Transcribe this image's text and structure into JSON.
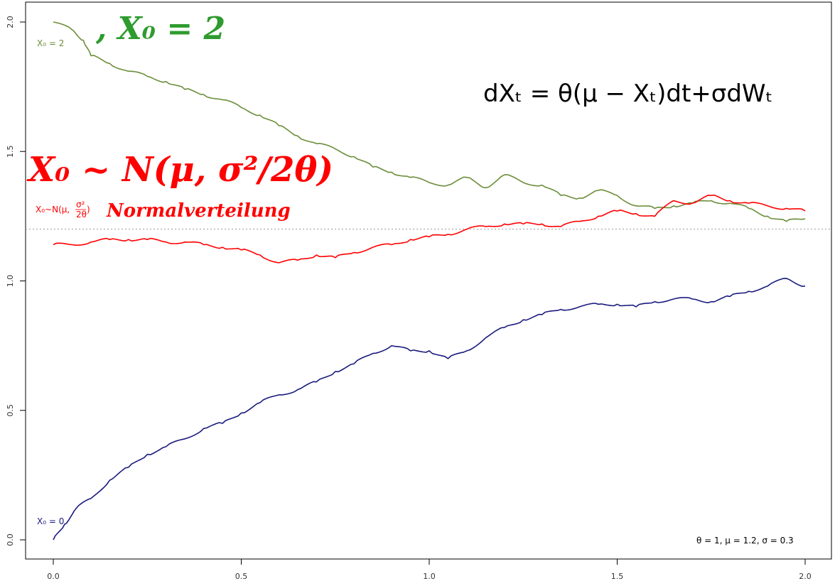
{
  "chart_data": {
    "type": "line",
    "title": "",
    "xlabel": "",
    "ylabel": "",
    "xlim": [
      0,
      2
    ],
    "ylim": [
      0,
      2
    ],
    "x_ticks": [
      0.0,
      0.5,
      1.0,
      1.5,
      2.0
    ],
    "x_tick_labels": [
      "0.0",
      "0.5",
      "1.0",
      "1.5",
      "2.0"
    ],
    "y_ticks": [
      0.0,
      0.5,
      1.0,
      1.5,
      2.0
    ],
    "y_tick_labels": [
      "0.0",
      "0.5",
      "1.0",
      "1.5",
      "2.0"
    ],
    "grid": false,
    "reference_line": {
      "y": 1.2,
      "style": "dotted",
      "color": "#999999"
    },
    "series": [
      {
        "name": "X₀ = 2",
        "color": "#6b8e3a",
        "x": [
          0,
          0.05,
          0.08,
          0.1,
          0.15,
          0.2,
          0.25,
          0.3,
          0.35,
          0.4,
          0.45,
          0.5,
          0.55,
          0.6,
          0.65,
          0.7,
          0.75,
          0.8,
          0.85,
          0.9,
          0.95,
          1.0,
          1.05,
          1.1,
          1.15,
          1.2,
          1.25,
          1.3,
          1.35,
          1.4,
          1.45,
          1.5,
          1.55,
          1.6,
          1.65,
          1.7,
          1.75,
          1.8,
          1.85,
          1.9,
          1.95,
          2.0
        ],
        "values": [
          2.0,
          1.97,
          1.93,
          1.87,
          1.84,
          1.81,
          1.79,
          1.77,
          1.74,
          1.72,
          1.7,
          1.67,
          1.64,
          1.6,
          1.56,
          1.53,
          1.51,
          1.48,
          1.44,
          1.42,
          1.4,
          1.38,
          1.37,
          1.4,
          1.36,
          1.41,
          1.38,
          1.37,
          1.33,
          1.32,
          1.35,
          1.33,
          1.29,
          1.28,
          1.29,
          1.3,
          1.31,
          1.3,
          1.28,
          1.25,
          1.23,
          1.24
        ]
      },
      {
        "name": "X₀~N(μ,σ²/2θ)",
        "color": "#ff0000",
        "x": [
          0,
          0.05,
          0.1,
          0.15,
          0.2,
          0.25,
          0.3,
          0.35,
          0.4,
          0.45,
          0.5,
          0.55,
          0.6,
          0.65,
          0.7,
          0.75,
          0.8,
          0.85,
          0.9,
          0.95,
          1.0,
          1.05,
          1.1,
          1.15,
          1.2,
          1.25,
          1.3,
          1.35,
          1.4,
          1.45,
          1.5,
          1.55,
          1.6,
          1.65,
          1.7,
          1.75,
          1.8,
          1.85,
          1.9,
          1.95,
          2.0
        ],
        "values": [
          1.14,
          1.14,
          1.15,
          1.16,
          1.16,
          1.16,
          1.15,
          1.15,
          1.14,
          1.13,
          1.12,
          1.1,
          1.07,
          1.08,
          1.1,
          1.09,
          1.11,
          1.13,
          1.14,
          1.16,
          1.17,
          1.18,
          1.2,
          1.21,
          1.22,
          1.22,
          1.22,
          1.21,
          1.23,
          1.25,
          1.27,
          1.26,
          1.25,
          1.31,
          1.3,
          1.33,
          1.31,
          1.3,
          1.29,
          1.28,
          1.27
        ]
      },
      {
        "name": "X₀ = 0",
        "color": "#1a1a7e",
        "x": [
          0,
          0.03,
          0.06,
          0.1,
          0.15,
          0.2,
          0.25,
          0.3,
          0.35,
          0.4,
          0.45,
          0.5,
          0.55,
          0.6,
          0.65,
          0.7,
          0.75,
          0.8,
          0.85,
          0.9,
          0.95,
          1.0,
          1.05,
          1.1,
          1.15,
          1.2,
          1.25,
          1.3,
          1.35,
          1.4,
          1.45,
          1.5,
          1.55,
          1.6,
          1.65,
          1.7,
          1.75,
          1.8,
          1.85,
          1.9,
          1.95,
          2.0
        ],
        "values": [
          0.0,
          0.06,
          0.12,
          0.16,
          0.23,
          0.28,
          0.33,
          0.36,
          0.39,
          0.43,
          0.45,
          0.49,
          0.53,
          0.56,
          0.58,
          0.61,
          0.65,
          0.68,
          0.72,
          0.75,
          0.73,
          0.73,
          0.7,
          0.73,
          0.78,
          0.82,
          0.85,
          0.87,
          0.89,
          0.9,
          0.91,
          0.91,
          0.9,
          0.92,
          0.93,
          0.93,
          0.92,
          0.94,
          0.96,
          0.98,
          1.01,
          0.98
        ]
      }
    ]
  },
  "labels": {
    "x0_2": "X₀ = 2",
    "x0_normal_prefix": "X₀~N(μ,",
    "x0_normal_num": "σ²",
    "x0_normal_den": "2θ",
    "x0_normal_suffix": ")",
    "x0_0": "X₀ = 0"
  },
  "formula": "dXₜ = θ(μ − Xₜ)dt+σdWₜ",
  "params": "θ = 1, μ = 1.2, σ = 0.3",
  "annotations": {
    "green": ", X₀ = 2",
    "red_formula": "X₀ ~ N(μ, σ²/2θ)",
    "red_word": "Normalverteilung"
  }
}
